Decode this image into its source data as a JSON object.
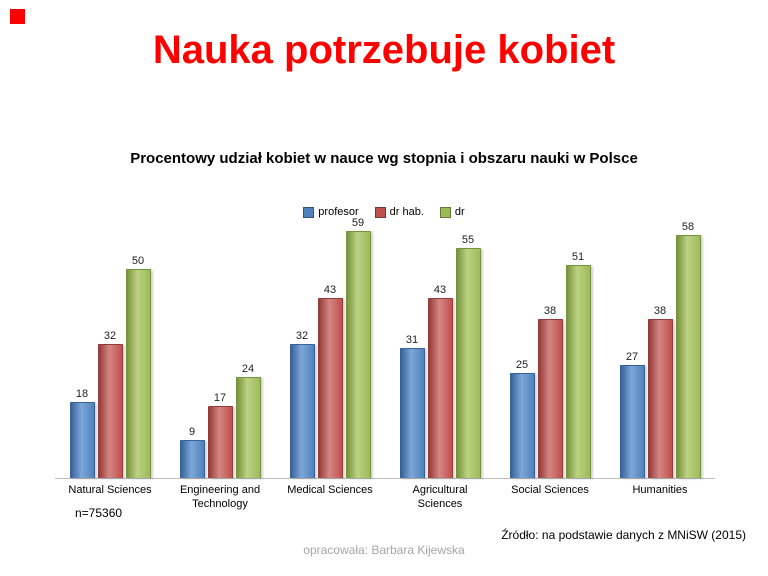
{
  "slide": {
    "title": "Nauka potrzebuje kobiet",
    "n_label": "n=75360",
    "source": "Źródło: na podstawie danych z MNiSW (2015)",
    "credit": "opracowała: Barbara Kijewska"
  },
  "colors": {
    "title_red": "#ff0000",
    "accent_square": "#ff0000"
  },
  "chart_data": {
    "type": "bar",
    "title": "Procentowy udział kobiet w nauce wg stopnia i obszaru nauki w Polsce",
    "categories": [
      "Natural Sciences",
      "Engineering and Technology",
      "Medical Sciences",
      "Agricultural Sciences",
      "Social Sciences",
      "Humanities"
    ],
    "series": [
      {
        "name": "profesor",
        "color": "#4f81bd",
        "light": "#7da7d8",
        "dark": "#38629a",
        "values": [
          18,
          9,
          32,
          31,
          25,
          27
        ]
      },
      {
        "name": "dr hab.",
        "color": "#c0504d",
        "light": "#d58683",
        "dark": "#953b39",
        "values": [
          32,
          17,
          43,
          43,
          38,
          38
        ]
      },
      {
        "name": "dr",
        "color": "#9bbb59",
        "light": "#bcd283",
        "dark": "#77933c",
        "values": [
          50,
          24,
          59,
          55,
          51,
          58
        ]
      }
    ],
    "xlabel": "",
    "ylabel": "",
    "ylim": [
      0,
      60
    ],
    "grid": false,
    "legend_position": "top",
    "value_labels": true
  }
}
